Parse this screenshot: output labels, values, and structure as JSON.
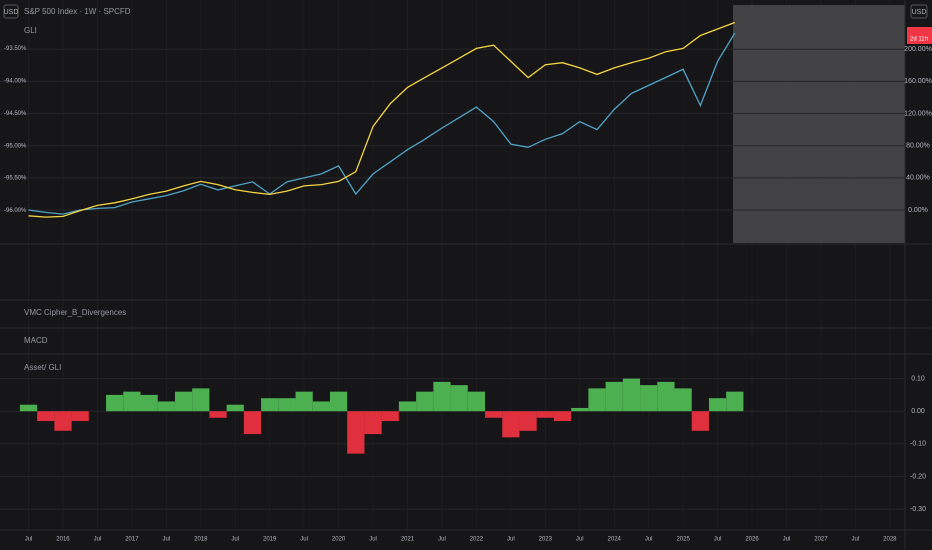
{
  "header": {
    "currency_left": "USD",
    "currency_right": "USD",
    "countdown": "2d 11h"
  },
  "indicator_labels": [
    "VMC Cipher_B_Divergences",
    "MACD"
  ],
  "chart_data": [
    {
      "type": "line",
      "title": "S&P 500 Index · 1W · SPCFD",
      "x": [
        2015.5,
        2015.75,
        2016,
        2016.25,
        2016.5,
        2016.75,
        2017,
        2017.25,
        2017.5,
        2017.75,
        2018,
        2018.25,
        2018.5,
        2018.75,
        2019,
        2019.25,
        2019.5,
        2019.75,
        2020,
        2020.25,
        2020.5,
        2020.75,
        2021,
        2021.25,
        2021.5,
        2021.75,
        2022,
        2022.25,
        2022.5,
        2022.75,
        2023,
        2023.25,
        2023.5,
        2023.75,
        2024,
        2024.25,
        2024.5,
        2024.75,
        2025,
        2025.25,
        2025.5,
        2025.75
      ],
      "series": [
        {
          "color": "#4fa3c7",
          "values": [
            0,
            -3,
            -5,
            0,
            2,
            3,
            10,
            14,
            18,
            24,
            32,
            25,
            30,
            35,
            20,
            35,
            40,
            45,
            55,
            20,
            45,
            60,
            75,
            88,
            102,
            115,
            128,
            110,
            82,
            78,
            88,
            95,
            110,
            100,
            125,
            145,
            155,
            165,
            175,
            130,
            185,
            220
          ]
        },
        {
          "name": "GLI",
          "color": "#f5d442",
          "axis": "y2",
          "values": [
            -96.08,
            -96.1,
            -96.09,
            -96.0,
            -95.92,
            -95.88,
            -95.82,
            -95.75,
            -95.7,
            -95.62,
            -95.55,
            -95.6,
            -95.68,
            -95.72,
            -95.75,
            -95.7,
            -95.62,
            -95.6,
            -95.55,
            -95.4,
            -94.7,
            -94.35,
            -94.1,
            -93.95,
            -93.8,
            -93.65,
            -93.5,
            -93.45,
            -93.7,
            -93.95,
            -93.75,
            -93.72,
            -93.8,
            -93.9,
            -93.8,
            -93.72,
            -93.65,
            -93.55,
            -93.5,
            -93.3,
            -93.2,
            -93.1
          ]
        }
      ],
      "xlim": [
        2015.086,
        2028.22
      ],
      "ylim": [
        -41,
        255
      ],
      "yticks": [
        {
          "value": 0,
          "label": "0.00%"
        },
        {
          "value": 40,
          "label": "40.00%"
        },
        {
          "value": 80,
          "label": "80.00%"
        },
        {
          "value": 120,
          "label": "120.00%"
        },
        {
          "value": 160,
          "label": "160.00%"
        },
        {
          "value": 200,
          "label": "200.00%"
        }
      ],
      "y2lim": [
        -96.5,
        -92.83
      ],
      "y2ticks": [
        {
          "value": -96,
          "label": "-96.00%"
        },
        {
          "value": -95.5,
          "label": "-95.50%"
        },
        {
          "value": -95,
          "label": "-95.00%"
        },
        {
          "value": -94.5,
          "label": "-94.50%"
        },
        {
          "value": -94,
          "label": "-94.00%"
        },
        {
          "value": -93.5,
          "label": "-93.50%"
        }
      ],
      "grid": true
    },
    {
      "type": "bar",
      "title": "Asset/ GLI",
      "x": [
        2015.5,
        2015.75,
        2016,
        2016.25,
        2016.5,
        2016.75,
        2017,
        2017.25,
        2017.5,
        2017.75,
        2018,
        2018.25,
        2018.5,
        2018.75,
        2019,
        2019.25,
        2019.5,
        2019.75,
        2020,
        2020.25,
        2020.5,
        2020.75,
        2021,
        2021.25,
        2021.5,
        2021.75,
        2022,
        2022.25,
        2022.5,
        2022.75,
        2023,
        2023.25,
        2023.5,
        2023.75,
        2024,
        2024.25,
        2024.5,
        2024.75,
        2025,
        2025.25,
        2025.5,
        2025.75
      ],
      "values": [
        0.02,
        -0.03,
        -0.06,
        -0.03,
        0.0,
        0.05,
        0.06,
        0.05,
        0.03,
        0.06,
        0.07,
        -0.02,
        0.02,
        -0.07,
        0.04,
        0.04,
        0.06,
        0.03,
        0.06,
        -0.13,
        -0.07,
        -0.03,
        0.03,
        0.06,
        0.09,
        0.08,
        0.06,
        -0.02,
        -0.08,
        -0.06,
        -0.02,
        -0.03,
        0.01,
        0.07,
        0.09,
        0.1,
        0.08,
        0.09,
        0.07,
        -0.06,
        0.04,
        0.06
      ],
      "positive_color": "#4caf50",
      "negative_color": "#e0303e",
      "xlim": [
        2015.086,
        2028.22
      ],
      "ylim": [
        -0.364,
        0.157
      ],
      "yticks": [
        {
          "value": 0.1,
          "label": "0.10"
        },
        {
          "value": 0,
          "label": "0.00"
        },
        {
          "value": -0.1,
          "label": "-0.10"
        },
        {
          "value": -0.2,
          "label": "-0.20"
        },
        {
          "value": -0.3,
          "label": "-0.30"
        }
      ],
      "xticks": [
        {
          "value": 2015.5,
          "label": "Jul"
        },
        2016,
        {
          "value": 2016.5,
          "label": "Jul"
        },
        2017,
        {
          "value": 2017.5,
          "label": "Jul"
        },
        2018,
        {
          "value": 2018.5,
          "label": "Jul"
        },
        2019,
        {
          "value": 2019.5,
          "label": "Jul"
        },
        2020,
        {
          "value": 2020.5,
          "label": "Jul"
        },
        2021,
        {
          "value": 2021.5,
          "label": "Jul"
        },
        2022,
        {
          "value": 2022.5,
          "label": "Jul"
        },
        2023,
        {
          "value": 2023.5,
          "label": "Jul"
        },
        2024,
        {
          "value": 2024.5,
          "label": "Jul"
        },
        2025,
        {
          "value": 2025.5,
          "label": "Jul"
        },
        2026,
        {
          "value": 2026.5,
          "label": "Jul"
        },
        2027,
        {
          "value": 2027.5,
          "label": "Jul"
        },
        2028
      ],
      "grid": true
    }
  ]
}
